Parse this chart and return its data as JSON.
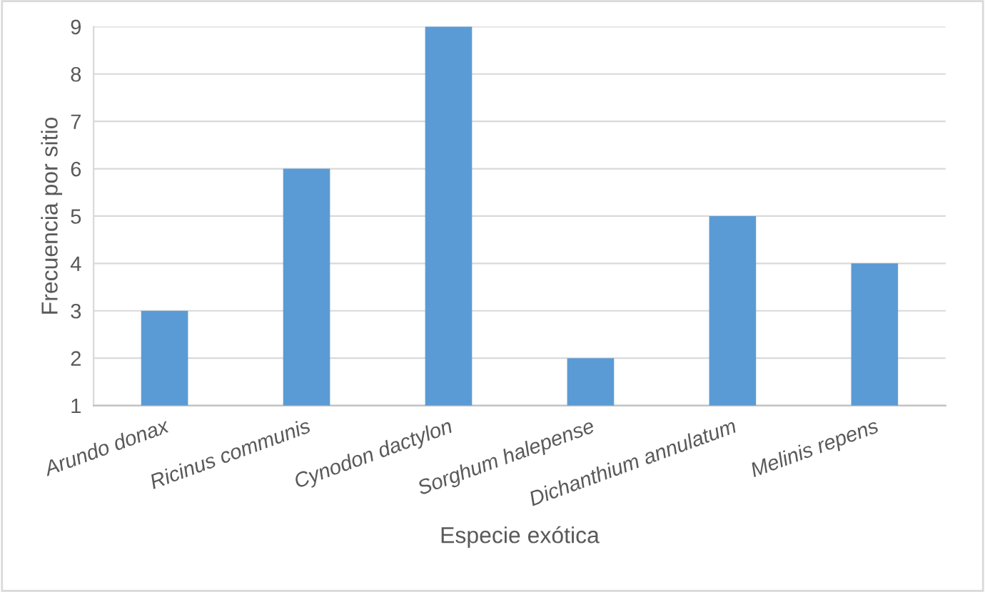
{
  "chart_data": {
    "type": "bar",
    "xlabel": "Especie exótica",
    "ylabel": "Frecuencia por sitio",
    "categories": [
      "Arundo donax",
      "Ricinus communis",
      "Cynodon dactylon",
      "Sorghum halepense",
      "Dichanthium annulatum",
      "Melinis repens"
    ],
    "values": [
      3,
      6,
      9,
      2,
      5,
      4
    ],
    "color": "#5b9bd5",
    "ylim": [
      1,
      9
    ],
    "yticks": [
      1,
      2,
      3,
      4,
      5,
      6,
      7,
      8,
      9
    ],
    "grid": "y",
    "legend": false
  }
}
